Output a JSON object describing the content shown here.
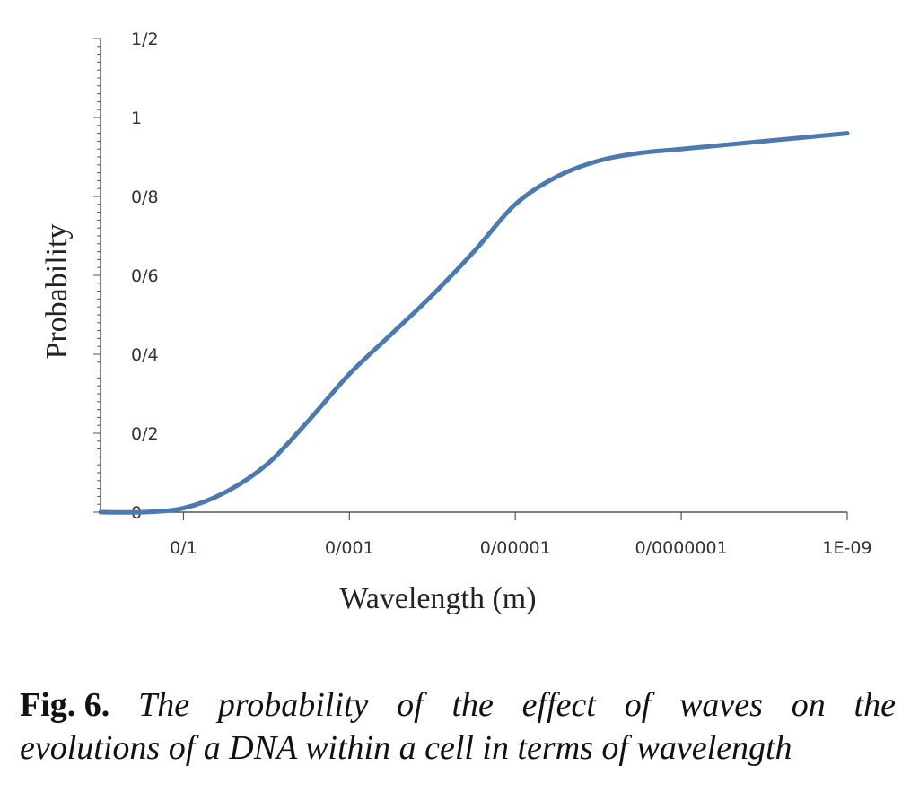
{
  "chart_data": {
    "type": "line",
    "title": "",
    "xlabel": "Wavelength (m)",
    "ylabel": "Probability",
    "x_tick_labels": [
      "0/1",
      "0/001",
      "0/00001",
      "0/0000001",
      "1E-09"
    ],
    "y_tick_labels": [
      "0",
      "0/2",
      "0/4",
      "0/6",
      "0/8",
      "1",
      "1/2"
    ],
    "x_scale": "log10, decreasing (10^0 to 10^-9)",
    "x_tick_exponents": [
      -1,
      -3,
      -5,
      -7,
      -9
    ],
    "xlim_exponent": [
      0,
      -9
    ],
    "ylim": [
      0,
      1.2
    ],
    "grid": false,
    "legend": "none",
    "series": [
      {
        "name": "Probability",
        "color": "#4a7ab0",
        "x_exponent": [
          0,
          -0.5,
          -1,
          -1.5,
          -2,
          -2.5,
          -3,
          -3.5,
          -4,
          -4.5,
          -5,
          -5.5,
          -6,
          -6.5,
          -7,
          -7.5,
          -8,
          -8.5,
          -9
        ],
        "values": [
          0.0,
          0.0,
          0.01,
          0.05,
          0.12,
          0.23,
          0.35,
          0.45,
          0.55,
          0.66,
          0.78,
          0.85,
          0.89,
          0.91,
          0.92,
          0.93,
          0.94,
          0.95,
          0.96
        ]
      }
    ]
  },
  "caption": {
    "fig_label": "Fig. 6.",
    "line1_words": [
      "The",
      "probability",
      "of",
      "the",
      "effect",
      "of",
      "waves",
      "on",
      "the"
    ],
    "line2": "evolutions of a DNA within a cell in terms of wavelength"
  }
}
